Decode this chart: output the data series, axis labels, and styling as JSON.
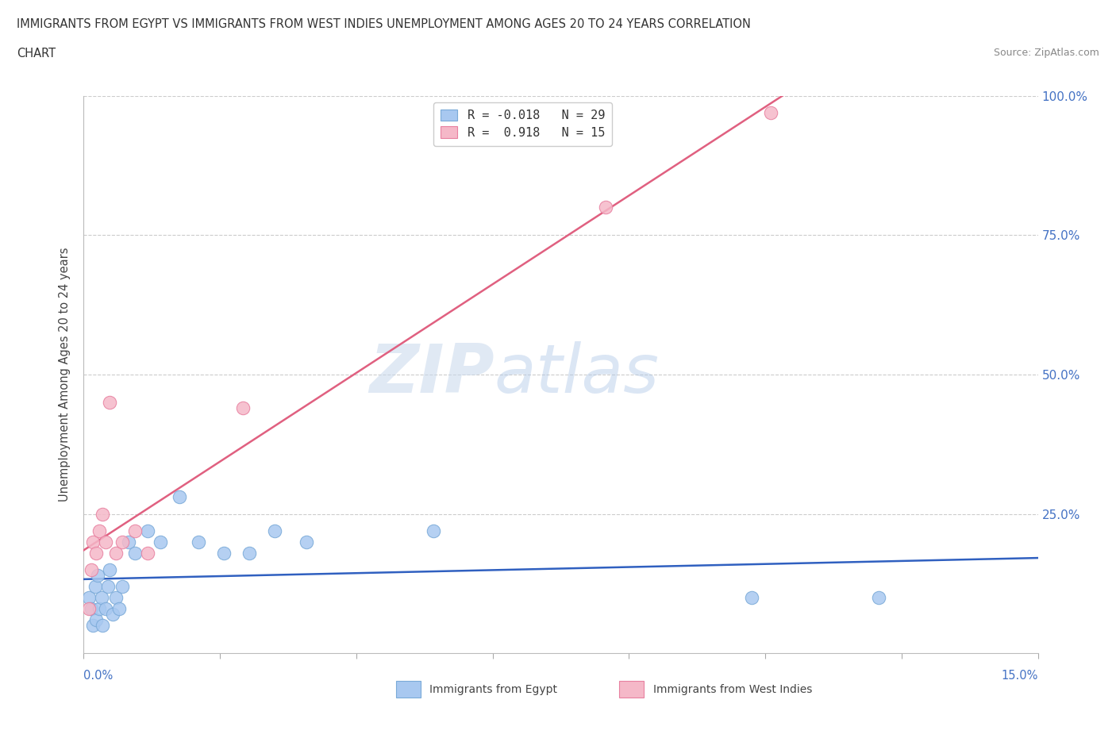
{
  "title_line1": "IMMIGRANTS FROM EGYPT VS IMMIGRANTS FROM WEST INDIES UNEMPLOYMENT AMONG AGES 20 TO 24 YEARS CORRELATION",
  "title_line2": "CHART",
  "source": "Source: ZipAtlas.com",
  "ylabel": "Unemployment Among Ages 20 to 24 years",
  "right_ytick_labels": [
    "",
    "25.0%",
    "50.0%",
    "75.0%",
    "100.0%"
  ],
  "xlim": [
    0.0,
    15.0
  ],
  "ylim": [
    0.0,
    100.0
  ],
  "egypt_color": "#a8c8f0",
  "egypt_edge_color": "#7aaad8",
  "west_indies_color": "#f5b8c8",
  "west_indies_edge_color": "#e880a0",
  "egypt_line_color": "#3060c0",
  "west_indies_line_color": "#e06080",
  "egypt_R": -0.018,
  "egypt_N": 29,
  "west_indies_R": 0.918,
  "west_indies_N": 15,
  "watermark_zip": "ZIP",
  "watermark_atlas": "atlas",
  "egypt_x": [
    0.08,
    0.12,
    0.15,
    0.18,
    0.2,
    0.22,
    0.25,
    0.28,
    0.3,
    0.35,
    0.38,
    0.4,
    0.45,
    0.5,
    0.55,
    0.6,
    0.7,
    0.8,
    1.0,
    1.2,
    1.5,
    1.8,
    2.2,
    2.6,
    3.0,
    3.5,
    5.5,
    10.5,
    12.5
  ],
  "egypt_y": [
    10.0,
    8.0,
    5.0,
    12.0,
    6.0,
    14.0,
    8.0,
    10.0,
    5.0,
    8.0,
    12.0,
    15.0,
    7.0,
    10.0,
    8.0,
    12.0,
    20.0,
    18.0,
    22.0,
    20.0,
    28.0,
    20.0,
    18.0,
    18.0,
    22.0,
    20.0,
    22.0,
    10.0,
    10.0
  ],
  "wi_x": [
    0.08,
    0.12,
    0.15,
    0.2,
    0.25,
    0.3,
    0.35,
    0.4,
    0.5,
    0.6,
    0.8,
    1.0,
    2.5,
    8.2,
    10.8
  ],
  "wi_y": [
    8.0,
    15.0,
    20.0,
    18.0,
    22.0,
    25.0,
    20.0,
    45.0,
    18.0,
    20.0,
    22.0,
    18.0,
    44.0,
    80.0,
    97.0
  ],
  "background_color": "#ffffff",
  "grid_color": "#cccccc",
  "xtick_positions": [
    0.0,
    2.143,
    4.286,
    6.429,
    8.571,
    10.714,
    12.857,
    15.0
  ],
  "ytick_positions": [
    0,
    25,
    50,
    75,
    100
  ]
}
